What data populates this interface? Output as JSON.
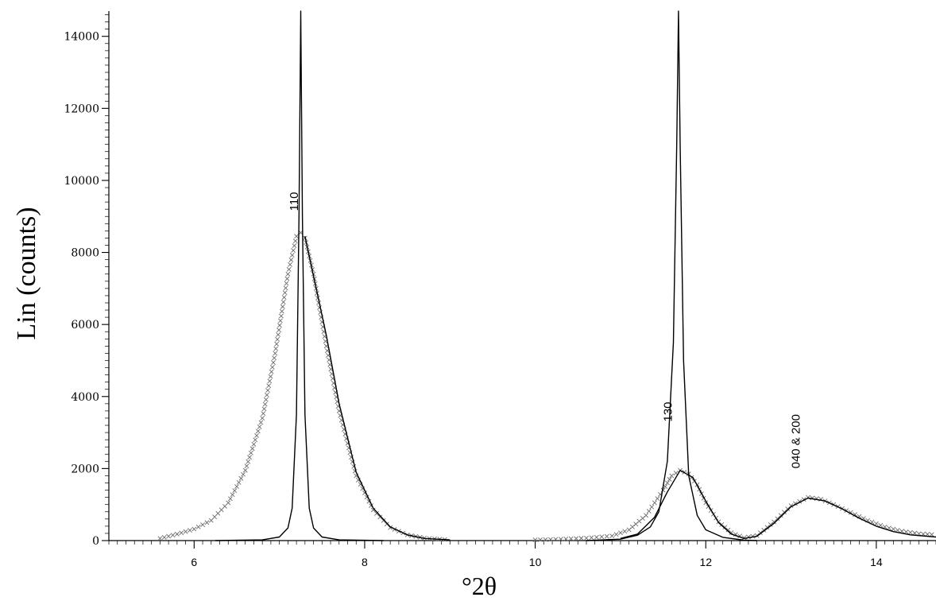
{
  "chart_data": {
    "type": "line",
    "title": "",
    "xlabel": "°2θ",
    "ylabel": "Lin (counts)",
    "xlim": [
      5,
      14.7
    ],
    "ylim": [
      0,
      14700
    ],
    "xticks": [
      "6",
      "8",
      "10",
      "12",
      "14"
    ],
    "yticks": [
      "0",
      "2000",
      "4000",
      "6000",
      "8000",
      "10000",
      "12000",
      "14000"
    ],
    "grid": false,
    "legend": "none",
    "colors": {
      "line": "#000000",
      "marker": "#6a6a6a"
    },
    "series": [
      {
        "style": "x-markers",
        "segments": [
          {
            "x": [
              5.6,
              5.8,
              6.0,
              6.2,
              6.4,
              6.6,
              6.8,
              6.95,
              7.1,
              7.2,
              7.25,
              7.3,
              7.4,
              7.55,
              7.7,
              7.9,
              8.1,
              8.3,
              8.5,
              8.7,
              9.0
            ],
            "y": [
              60,
              180,
              320,
              560,
              1050,
              1950,
              3400,
              5200,
              7400,
              8450,
              8550,
              8400,
              7400,
              5400,
              3600,
              1800,
              850,
              360,
              160,
              70,
              20
            ]
          },
          {
            "x": [
              10.0,
              10.3,
              10.6,
              10.9,
              11.1,
              11.3,
              11.5,
              11.6,
              11.7,
              11.8,
              11.9,
              12.0,
              12.15,
              12.3,
              12.45,
              12.6,
              12.8,
              13.0,
              13.2,
              13.35,
              13.5,
              13.7,
              13.9,
              14.1,
              14.3,
              14.5,
              14.7
            ],
            "y": [
              20,
              40,
              70,
              130,
              300,
              700,
              1400,
              1800,
              1950,
              1850,
              1550,
              1050,
              520,
              220,
              80,
              140,
              520,
              970,
              1200,
              1150,
              1000,
              780,
              560,
              380,
              260,
              190,
              160
            ]
          }
        ]
      },
      {
        "style": "line",
        "segments": [
          {
            "x": [
              6.25,
              6.8,
              7.0,
              7.1,
              7.15,
              7.2,
              7.23,
              7.25,
              7.27,
              7.3,
              7.35,
              7.4,
              7.5,
              7.7,
              8.22
            ],
            "y": [
              0,
              20,
              100,
              350,
              900,
              3500,
              9000,
              14700,
              9000,
              3500,
              900,
              350,
              100,
              20,
              0
            ]
          },
          {
            "x": [
              7.3,
              7.55,
              7.7,
              7.9,
              8.1,
              8.3,
              8.5,
              8.7,
              9.0
            ],
            "y": [
              8450,
              5700,
              3800,
              1900,
              900,
              380,
              160,
              60,
              20
            ]
          },
          {
            "x": [
              10.6,
              11.0,
              11.2,
              11.35,
              11.45,
              11.55,
              11.62,
              11.66,
              11.68,
              11.7,
              11.74,
              11.8,
              11.9,
              12.0,
              12.2,
              12.45,
              12.6
            ],
            "y": [
              0,
              40,
              150,
              380,
              800,
              2200,
              5500,
              11000,
              14700,
              11000,
              5000,
              1800,
              700,
              300,
              90,
              10,
              0
            ]
          },
          {
            "x": [
              11.0,
              11.2,
              11.4,
              11.55,
              11.7,
              11.85,
              12.0,
              12.15,
              12.3,
              12.45,
              12.6,
              12.8,
              13.0,
              13.2,
              13.4,
              13.6,
              13.8,
              14.0,
              14.2,
              14.4,
              14.7
            ],
            "y": [
              60,
              180,
              650,
              1350,
              1950,
              1750,
              1100,
              500,
              180,
              60,
              120,
              480,
              940,
              1180,
              1100,
              880,
              620,
              400,
              250,
              160,
              100
            ]
          }
        ]
      }
    ],
    "annotations": [
      {
        "text": "110",
        "x": 7.22,
        "y": 9150
      },
      {
        "text": "130",
        "x": 11.6,
        "y": 3300
      },
      {
        "text": "040 & 200",
        "x": 13.1,
        "y": 2000
      }
    ]
  }
}
